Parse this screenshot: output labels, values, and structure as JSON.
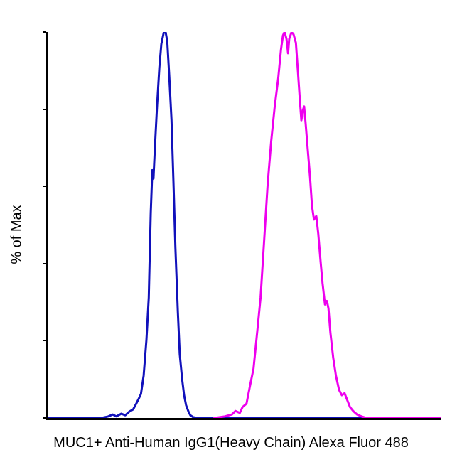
{
  "figure": {
    "background": "#ffffff",
    "axis_color": "#000000"
  },
  "chart_data": {
    "type": "line",
    "subtype": "flow-cytometry-histogram-overlay",
    "title": "",
    "xlabel": "MUC1+ Anti-Human IgG1(Heavy Chain) Alexa Fluor 488",
    "ylabel": "% of Max",
    "xlim": [
      0,
      100
    ],
    "ylim": [
      0,
      100
    ],
    "x_tick_labels": [],
    "y_tick_labels": [],
    "y_ticks_percent": [
      0,
      20,
      40,
      60,
      80,
      100
    ],
    "grid": false,
    "legend": "none",
    "series": [
      {
        "name": "blue",
        "color": "#1111bb",
        "stroke_width": 3,
        "peak_x_percent": 29.9,
        "peak_y_percent": 100,
        "points": [
          [
            0,
            0
          ],
          [
            13.5,
            0
          ],
          [
            15.3,
            0.4
          ],
          [
            16.4,
            0.9
          ],
          [
            17.3,
            0.4
          ],
          [
            18.6,
            1.1
          ],
          [
            19.6,
            0.7
          ],
          [
            20.7,
            1.7
          ],
          [
            21.6,
            2.2
          ],
          [
            22.3,
            3.5
          ],
          [
            23.1,
            5.1
          ],
          [
            23.6,
            6.2
          ],
          [
            24.3,
            11
          ],
          [
            25,
            20.2
          ],
          [
            25.6,
            31.2
          ],
          [
            26.1,
            53.2
          ],
          [
            26.5,
            64.2
          ],
          [
            26.8,
            62
          ],
          [
            27.2,
            70.6
          ],
          [
            27.7,
            80.7
          ],
          [
            28.3,
            90.8
          ],
          [
            28.8,
            96.9
          ],
          [
            29.4,
            99.8
          ],
          [
            29.9,
            100
          ],
          [
            30.3,
            97.6
          ],
          [
            30.8,
            89
          ],
          [
            31.4,
            77.1
          ],
          [
            31.9,
            60.6
          ],
          [
            32.4,
            44
          ],
          [
            33,
            27.5
          ],
          [
            33.5,
            16.5
          ],
          [
            34.1,
            10.1
          ],
          [
            34.6,
            5.9
          ],
          [
            35.1,
            3.3
          ],
          [
            35.7,
            1.7
          ],
          [
            36.2,
            0.7
          ],
          [
            36.9,
            0.2
          ],
          [
            38,
            0
          ],
          [
            100,
            0
          ]
        ]
      },
      {
        "name": "magenta",
        "color": "#ee00ee",
        "stroke_width": 3,
        "peak_x_percent": 61,
        "peak_y_percent": 100,
        "points": [
          [
            42.3,
            0
          ],
          [
            45,
            0.4
          ],
          [
            46.8,
            0.9
          ],
          [
            47.7,
            1.8
          ],
          [
            48.8,
            1.3
          ],
          [
            49.5,
            2.8
          ],
          [
            50.5,
            3.7
          ],
          [
            51.4,
            8.3
          ],
          [
            52.3,
            12.8
          ],
          [
            53.2,
            22
          ],
          [
            54.1,
            31.2
          ],
          [
            55,
            45.9
          ],
          [
            55.9,
            60.6
          ],
          [
            56.8,
            71.6
          ],
          [
            57.7,
            80.7
          ],
          [
            58.6,
            88.1
          ],
          [
            59.3,
            95.4
          ],
          [
            59.8,
            99.1
          ],
          [
            60.2,
            100
          ],
          [
            60.7,
            98.2
          ],
          [
            61.1,
            94.5
          ],
          [
            61.4,
            98.2
          ],
          [
            62,
            100
          ],
          [
            62.5,
            99.4
          ],
          [
            63.1,
            97.2
          ],
          [
            63.6,
            89.9
          ],
          [
            64.1,
            82.6
          ],
          [
            64.5,
            77.1
          ],
          [
            64.9,
            79.8
          ],
          [
            65.2,
            80.7
          ],
          [
            65.6,
            76.1
          ],
          [
            66.1,
            69.7
          ],
          [
            66.7,
            62.4
          ],
          [
            67.2,
            55
          ],
          [
            67.7,
            51.4
          ],
          [
            68.3,
            52.3
          ],
          [
            68.8,
            47.7
          ],
          [
            69.4,
            40.4
          ],
          [
            69.9,
            34.9
          ],
          [
            70.5,
            29.4
          ],
          [
            71,
            30.3
          ],
          [
            71.4,
            28.4
          ],
          [
            71.9,
            22
          ],
          [
            72.6,
            15.6
          ],
          [
            73.3,
            11
          ],
          [
            74.1,
            7.3
          ],
          [
            74.8,
            5.9
          ],
          [
            75.5,
            6.4
          ],
          [
            76.2,
            4.6
          ],
          [
            76.9,
            2.8
          ],
          [
            77.7,
            1.8
          ],
          [
            78.7,
            0.9
          ],
          [
            79.8,
            0.4
          ],
          [
            81.1,
            0
          ],
          [
            100,
            0
          ]
        ]
      }
    ]
  }
}
